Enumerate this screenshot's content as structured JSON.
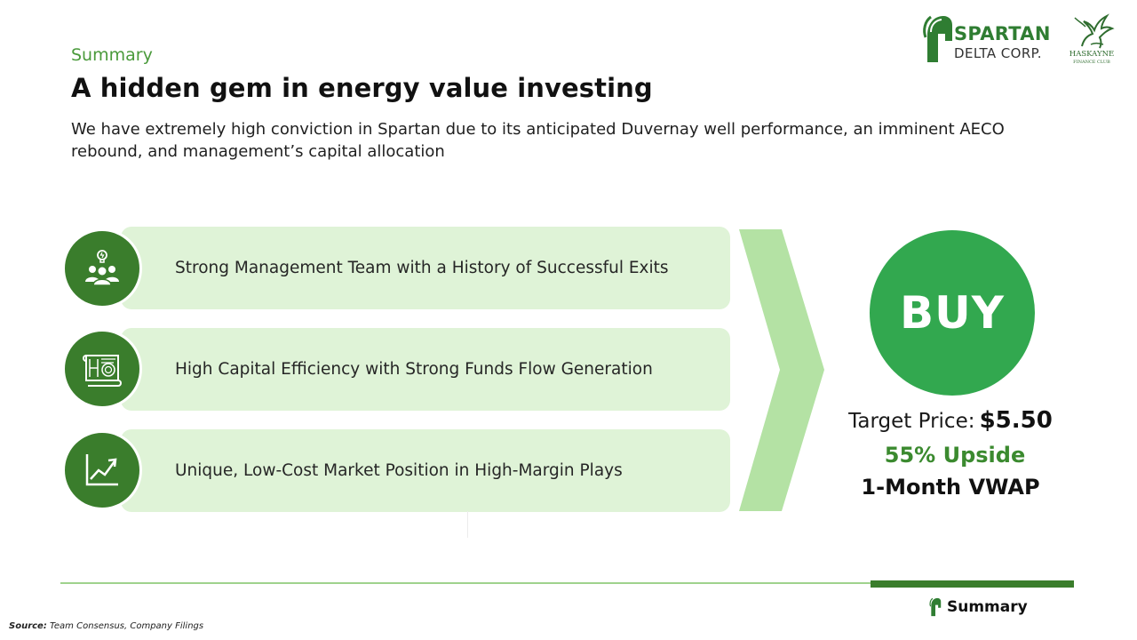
{
  "header": {
    "section_label": "Summary",
    "title": "A hidden gem in energy value investing",
    "subtitle": "We have extremely high conviction in Spartan due to its anticipated Duvernay well performance, an imminent AECO rebound, and management’s capital allocation"
  },
  "logos": {
    "spartan_line1": "SPARTAN",
    "spartan_line2": "DELTA CORP.",
    "spartan_icon": "spartan-helmet-icon",
    "haskayne_name": "HASKAYNE",
    "haskayne_sub": "FINANCE CLUB",
    "haskayne_icon": "pegasus-icon"
  },
  "theses": [
    {
      "icon": "team-idea-icon",
      "text": "Strong Management Team with a History of Successful Exits"
    },
    {
      "icon": "blueprint-icon",
      "text": "High Capital Efficiency with Strong Funds Flow Generation"
    },
    {
      "icon": "growth-chart-icon",
      "text": "Unique, Low-Cost Market Position in High-Margin Plays"
    }
  ],
  "recommendation": {
    "rating": "BUY",
    "target_label": "Target Price:",
    "target_value": "$5.50",
    "upside": "55% Upside",
    "basis": "1-Month VWAP"
  },
  "footer": {
    "nav_label": "Summary",
    "nav_icon": "spartan-helmet-icon",
    "source_label": "Source:",
    "source_text": "Team Consensus, Company Filings"
  },
  "colors": {
    "brand_green": "#3a7d2c",
    "buy_green": "#32a84f",
    "pill_bg": "#dff3d7",
    "chevron": "#b4e2a4",
    "accent_text": "#4a9a3b"
  }
}
